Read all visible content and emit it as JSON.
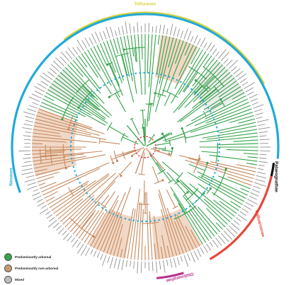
{
  "figure": {
    "clades": [
      {
        "label": "Telluraves",
        "color": "#d6d23a"
      },
      {
        "label": "Neoaves",
        "color": "#22a9d8"
      },
      {
        "label": "Palaeognathae",
        "color": "#111111"
      },
      {
        "label": "Galloanserae",
        "color": "#e8463a"
      },
      {
        "label": "Otidimorphae",
        "color": "#b8328f"
      }
    ],
    "legend": [
      {
        "label": "Predominantly arboreal",
        "color": "#35a24a"
      },
      {
        "label": "Predominantly non-arboreal",
        "color": "#c79a72"
      },
      {
        "label": "Mixed",
        "color": "#bdbdbd"
      }
    ],
    "branch_colors": {
      "arboreal": "#35a24a",
      "non_arboreal": "#c68a5e",
      "mixed": "#bdbdbd"
    },
    "background_colors": {
      "arboreal": "#f1d7c5",
      "mixed": "#ececec"
    },
    "root_circle_color": "#e53935",
    "time_circle_color": "#22a9d8"
  }
}
